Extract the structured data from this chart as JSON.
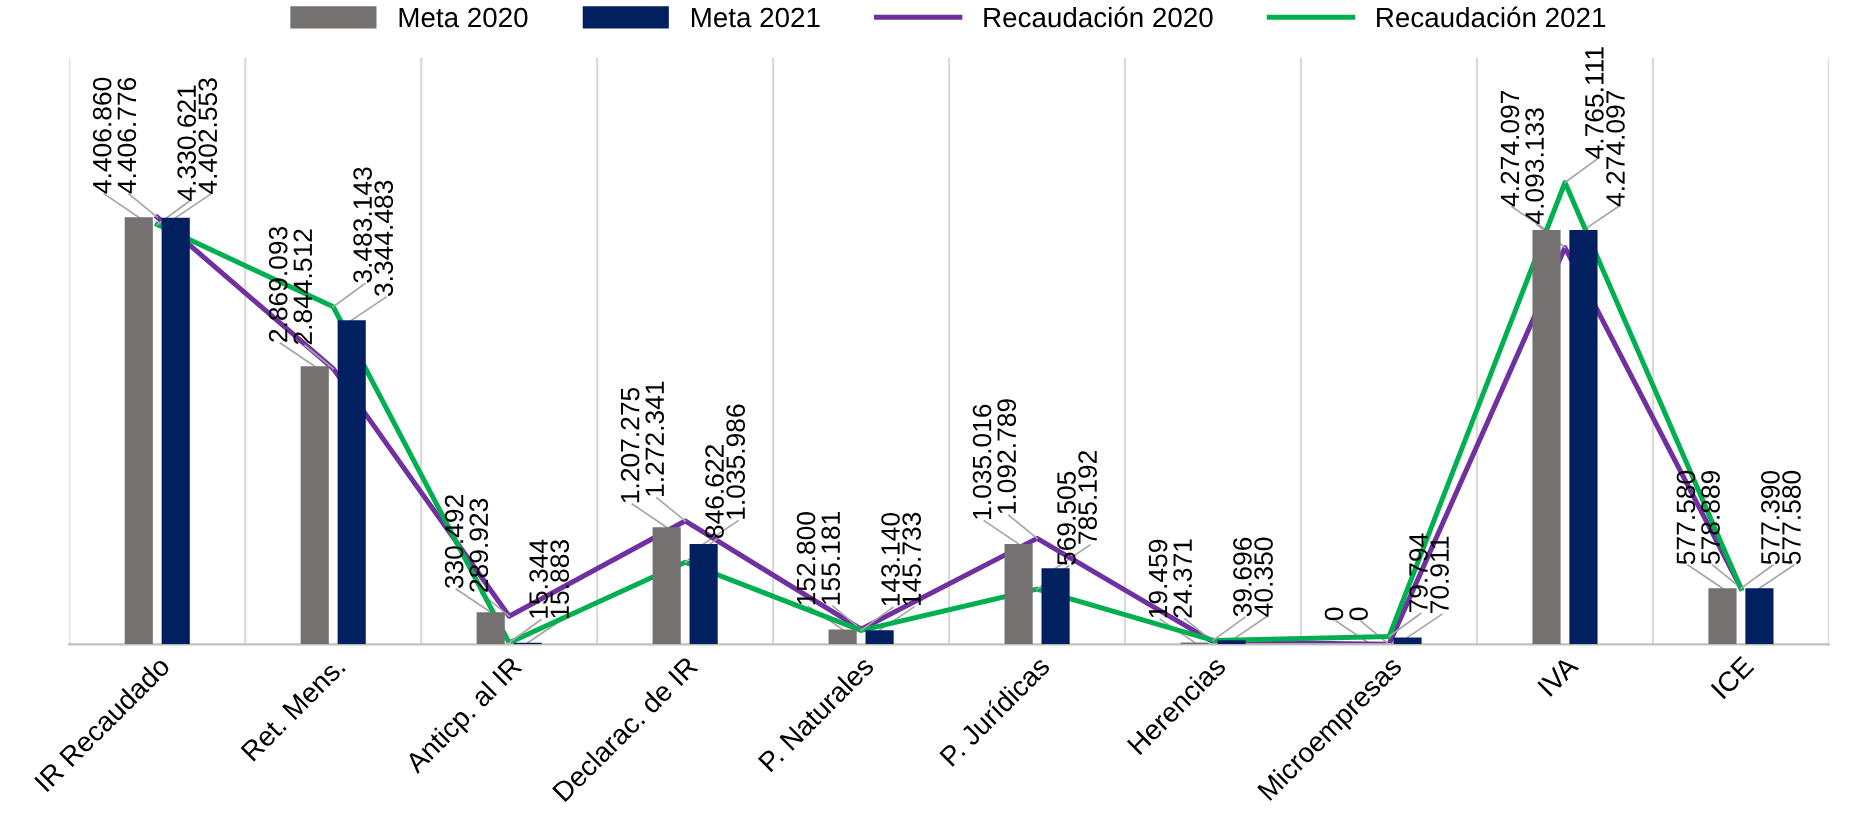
{
  "chart_data": {
    "categories": [
      "IR Recaudado",
      "Ret. Mens.",
      "Anticp. al IR",
      "Declarac. de IR",
      "P. Naturales",
      "P. Jurídicas",
      "Herencias",
      "Microempresas",
      "IVA",
      "ICE"
    ],
    "series": [
      {
        "name": "Meta 2020",
        "type": "bar",
        "color": "#767171",
        "values": [
          4406860,
          2869093,
          330492,
          1207275,
          152800,
          1035016,
          19459,
          0,
          4274097,
          577580
        ],
        "value_labels": [
          "4.406.860",
          "2.869.093",
          "330.492",
          "1.207.275",
          "152.800",
          "1.035.016",
          "19.459",
          "0",
          "4.274.097",
          "577.580"
        ]
      },
      {
        "name": "Meta 2021",
        "type": "bar",
        "color": "#002060",
        "values": [
          4402553,
          3344483,
          15883,
          1035986,
          145733,
          785192,
          40350,
          70911,
          4274097,
          577580
        ],
        "value_labels": [
          "4.402.553",
          "3.344.483",
          "15.883",
          "1.035.986",
          "145.733",
          "785.192",
          "40.350",
          "70.911",
          "4.274.097",
          "577.580"
        ]
      },
      {
        "name": "Recaudación 2020",
        "type": "line",
        "color": "#7030a0",
        "values": [
          4406776,
          2844512,
          289923,
          1272341,
          155181,
          1092789,
          24371,
          0,
          4093133,
          578889
        ],
        "value_labels": [
          "4.406.776",
          "2.844.512",
          "289.923",
          "1.272.341",
          "155.181",
          "1.092.789",
          "24.371",
          "0",
          "4.093.133",
          "578.889"
        ]
      },
      {
        "name": "Recaudación 2021",
        "type": "line",
        "color": "#00b050",
        "values": [
          4330621,
          3483143,
          15344,
          846622,
          143140,
          569505,
          39696,
          79794,
          4765111,
          577390
        ],
        "value_labels": [
          "4.330.621",
          "3.483.143",
          "15.344",
          "846.622",
          "143.140",
          "569.505",
          "39.696",
          "79.794",
          "4.765.111",
          "577.390"
        ]
      }
    ],
    "legend": "top",
    "type": "bar",
    "grid": "x",
    "marker": "none"
  }
}
